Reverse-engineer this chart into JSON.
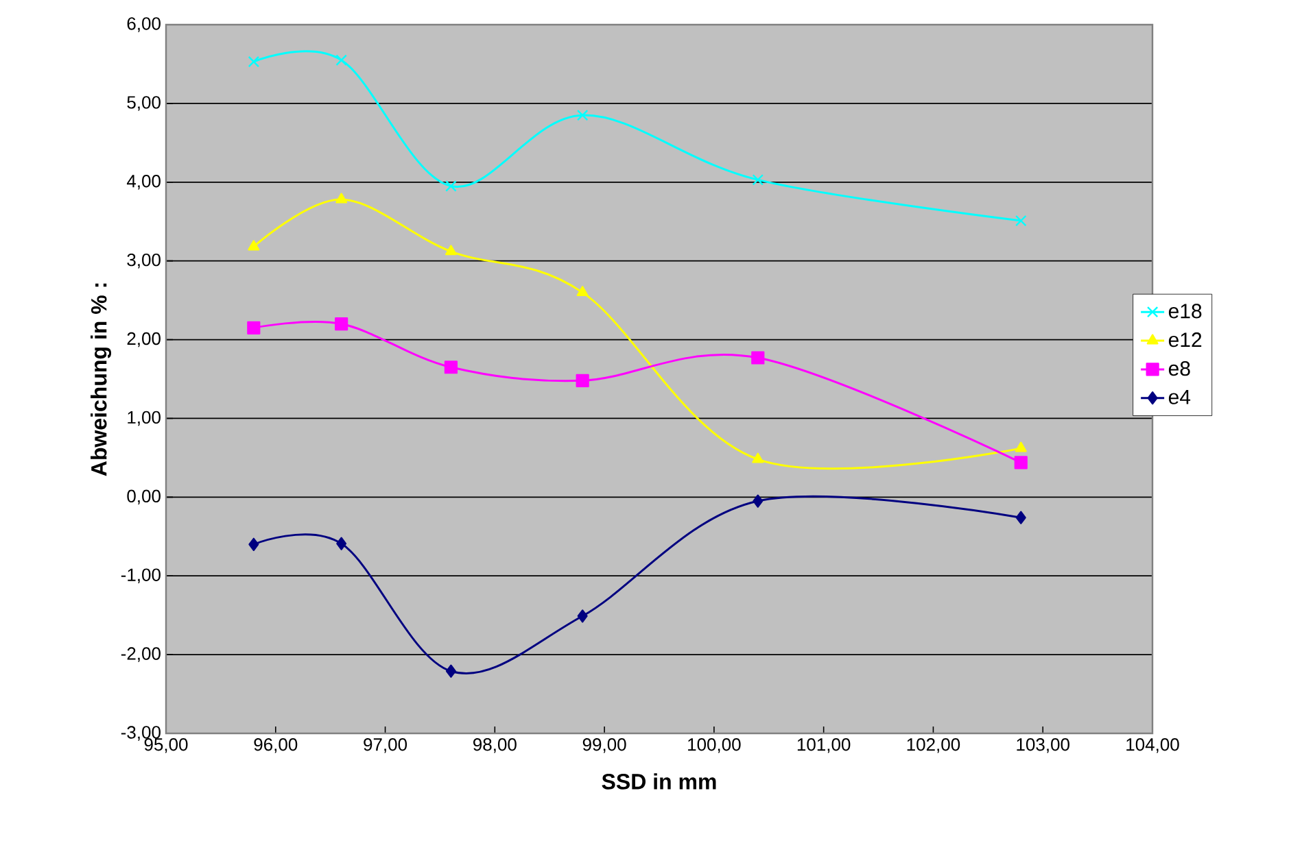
{
  "chart_data": {
    "type": "line",
    "xlabel": "SSD in mm",
    "ylabel": "Abweichung in %  :",
    "xlim": [
      95,
      104
    ],
    "ylim": [
      -3,
      6
    ],
    "xticks": [
      {
        "value": 95,
        "label": "95,00"
      },
      {
        "value": 96,
        "label": "96,00"
      },
      {
        "value": 97,
        "label": "97,00"
      },
      {
        "value": 98,
        "label": "98,00"
      },
      {
        "value": 99,
        "label": "99,00"
      },
      {
        "value": 100,
        "label": "100,00"
      },
      {
        "value": 101,
        "label": "101,00"
      },
      {
        "value": 102,
        "label": "102,00"
      },
      {
        "value": 103,
        "label": "103,00"
      },
      {
        "value": 104,
        "label": "104,00"
      }
    ],
    "yticks": [
      {
        "value": -3,
        "label": "-3,00"
      },
      {
        "value": -2,
        "label": "-2,00"
      },
      {
        "value": -1,
        "label": "-1,00"
      },
      {
        "value": 0,
        "label": "0,00"
      },
      {
        "value": 1,
        "label": "1,00"
      },
      {
        "value": 2,
        "label": "2,00"
      },
      {
        "value": 3,
        "label": "3,00"
      },
      {
        "value": 4,
        "label": "4,00"
      },
      {
        "value": 5,
        "label": "5,00"
      },
      {
        "value": 6,
        "label": "6,00"
      }
    ],
    "x": [
      95.8,
      96.6,
      97.6,
      98.8,
      100.4,
      102.8
    ],
    "grid": "y",
    "legend": "right",
    "line_style": "solid",
    "series": [
      {
        "name": "e18",
        "color": "#00ffff",
        "marker": "cross",
        "values": [
          5.53,
          5.55,
          3.95,
          4.85,
          4.03,
          3.51
        ]
      },
      {
        "name": "e12",
        "color": "#ffff00",
        "marker": "triangle",
        "values": [
          3.18,
          3.78,
          3.12,
          2.6,
          0.48,
          0.62
        ]
      },
      {
        "name": "e8",
        "color": "#ff00ff",
        "marker": "square",
        "values": [
          2.15,
          2.2,
          1.65,
          1.48,
          1.77,
          0.44
        ]
      },
      {
        "name": "e4",
        "color": "#000080",
        "marker": "diamond",
        "values": [
          -0.6,
          -0.59,
          -2.21,
          -1.51,
          -0.05,
          -0.26
        ]
      }
    ]
  }
}
